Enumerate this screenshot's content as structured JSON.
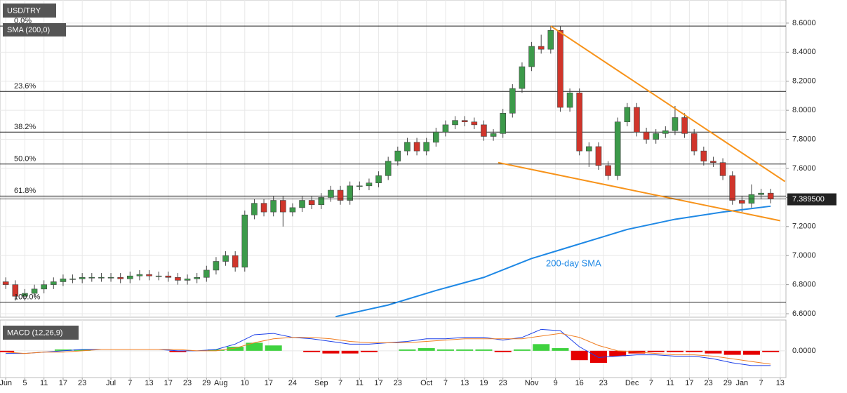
{
  "chart_data": {
    "type": "candlestick",
    "title": "USD/TRY",
    "overlay_label": "SMA (200,0)",
    "xlim": [
      -1.2,
      163.2
    ],
    "ylim": [
      6.576,
      8.759
    ],
    "yticks": [
      {
        "value": 6.6,
        "label": "6.6000"
      },
      {
        "value": 6.8,
        "label": "6.8000"
      },
      {
        "value": 7.0,
        "label": "7.0000"
      },
      {
        "value": 7.2,
        "label": "7.2000"
      },
      {
        "value": 7.4,
        "label": "7.4000"
      },
      {
        "value": 7.6,
        "label": "7.6000"
      },
      {
        "value": 7.8,
        "label": "7.8000"
      },
      {
        "value": 8.0,
        "label": "8.0000"
      },
      {
        "value": 8.2,
        "label": "8.2000"
      },
      {
        "value": 8.4,
        "label": "8.4000"
      },
      {
        "value": 8.6,
        "label": "8.6000"
      }
    ],
    "xticks": [
      {
        "value": 0,
        "label": "Jun"
      },
      {
        "value": 4,
        "label": "5"
      },
      {
        "value": 8,
        "label": "11"
      },
      {
        "value": 12,
        "label": "17"
      },
      {
        "value": 16,
        "label": "23"
      },
      {
        "value": 22,
        "label": "Jul"
      },
      {
        "value": 26,
        "label": "7"
      },
      {
        "value": 30,
        "label": "13"
      },
      {
        "value": 34,
        "label": "17"
      },
      {
        "value": 38,
        "label": "23"
      },
      {
        "value": 42,
        "label": "29"
      },
      {
        "value": 45,
        "label": "Aug"
      },
      {
        "value": 50,
        "label": "10"
      },
      {
        "value": 55,
        "label": "17"
      },
      {
        "value": 60,
        "label": "24"
      },
      {
        "value": 66,
        "label": "Sep"
      },
      {
        "value": 70,
        "label": "7"
      },
      {
        "value": 74,
        "label": "11"
      },
      {
        "value": 78,
        "label": "17"
      },
      {
        "value": 82,
        "label": "23"
      },
      {
        "value": 88,
        "label": "Oct"
      },
      {
        "value": 92,
        "label": "7"
      },
      {
        "value": 96,
        "label": "13"
      },
      {
        "value": 100,
        "label": "19"
      },
      {
        "value": 104,
        "label": "23"
      },
      {
        "value": 110,
        "label": "Nov"
      },
      {
        "value": 115,
        "label": "9"
      },
      {
        "value": 120,
        "label": "16"
      },
      {
        "value": 125,
        "label": "23"
      },
      {
        "value": 131,
        "label": "Dec"
      },
      {
        "value": 135,
        "label": "7"
      },
      {
        "value": 139,
        "label": "11"
      },
      {
        "value": 143,
        "label": "17"
      },
      {
        "value": 147,
        "label": "23"
      },
      {
        "value": 151,
        "label": "29"
      },
      {
        "value": 154,
        "label": "Jan"
      },
      {
        "value": 158,
        "label": "7"
      },
      {
        "value": 162,
        "label": "13"
      }
    ],
    "grid": true,
    "up_color": "#3c9a4a",
    "down_color": "#d0352b",
    "candles": {
      "x": [
        0,
        2,
        4,
        6,
        8,
        10,
        12,
        14,
        16,
        18,
        20,
        22,
        24,
        26,
        28,
        30,
        32,
        34,
        36,
        38,
        40,
        42,
        44,
        46,
        48,
        50,
        52,
        54,
        56,
        58,
        60,
        62,
        64,
        66,
        68,
        70,
        72,
        74,
        76,
        78,
        80,
        82,
        84,
        86,
        88,
        90,
        92,
        94,
        96,
        98,
        100,
        102,
        104,
        106,
        108,
        110,
        112,
        114,
        116,
        118,
        120,
        122,
        124,
        126,
        128,
        130,
        132,
        134,
        136,
        138,
        140,
        142,
        144,
        146,
        148,
        150,
        152,
        154,
        156,
        158,
        160
      ],
      "open": [
        6.82,
        6.8,
        6.72,
        6.74,
        6.77,
        6.8,
        6.82,
        6.84,
        6.84,
        6.85,
        6.85,
        6.85,
        6.85,
        6.84,
        6.86,
        6.87,
        6.86,
        6.86,
        6.85,
        6.83,
        6.84,
        6.85,
        6.9,
        6.96,
        7.0,
        6.92,
        7.28,
        7.36,
        7.3,
        7.38,
        7.3,
        7.33,
        7.38,
        7.35,
        7.4,
        7.45,
        7.38,
        7.48,
        7.48,
        7.5,
        7.55,
        7.65,
        7.72,
        7.78,
        7.72,
        7.78,
        7.85,
        7.9,
        7.93,
        7.92,
        7.9,
        7.82,
        7.84,
        7.98,
        8.15,
        8.3,
        8.44,
        8.42,
        8.55,
        8.02,
        8.12,
        7.72,
        7.75,
        7.62,
        7.55,
        7.92,
        8.02,
        7.85,
        7.8,
        7.84,
        7.86,
        7.95,
        7.84,
        7.72,
        7.65,
        7.64,
        7.55,
        7.38,
        7.36,
        7.42,
        7.43
      ],
      "high": [
        6.85,
        6.83,
        6.77,
        6.8,
        6.83,
        6.85,
        6.87,
        6.87,
        6.88,
        6.88,
        6.88,
        6.88,
        6.88,
        6.89,
        6.9,
        6.9,
        6.89,
        6.89,
        6.88,
        6.87,
        6.88,
        6.93,
        6.99,
        7.03,
        7.03,
        7.31,
        7.39,
        7.39,
        7.41,
        7.41,
        7.36,
        7.41,
        7.41,
        7.43,
        7.48,
        7.48,
        7.51,
        7.51,
        7.53,
        7.58,
        7.68,
        7.75,
        7.81,
        7.81,
        7.81,
        7.88,
        7.93,
        7.96,
        7.96,
        7.95,
        7.93,
        7.87,
        8.01,
        8.18,
        8.33,
        8.47,
        8.52,
        8.58,
        8.58,
        8.15,
        8.15,
        7.78,
        7.78,
        7.65,
        7.95,
        8.05,
        8.05,
        7.88,
        7.87,
        7.89,
        8.03,
        7.98,
        7.87,
        7.75,
        7.68,
        7.67,
        7.58,
        7.41,
        7.49,
        7.46,
        7.46
      ],
      "low": [
        6.77,
        6.69,
        6.69,
        6.71,
        6.74,
        6.77,
        6.79,
        6.81,
        6.81,
        6.82,
        6.82,
        6.82,
        6.81,
        6.81,
        6.83,
        6.83,
        6.83,
        6.82,
        6.8,
        6.8,
        6.81,
        6.82,
        6.87,
        6.93,
        6.89,
        6.89,
        7.25,
        7.27,
        7.27,
        7.2,
        7.27,
        7.3,
        7.32,
        7.32,
        7.37,
        7.35,
        7.35,
        7.45,
        7.45,
        7.47,
        7.52,
        7.62,
        7.69,
        7.69,
        7.69,
        7.75,
        7.82,
        7.87,
        7.89,
        7.87,
        7.79,
        7.79,
        7.81,
        7.95,
        8.12,
        8.27,
        8.39,
        8.39,
        7.99,
        7.99,
        7.69,
        7.61,
        7.59,
        7.52,
        7.52,
        7.89,
        7.82,
        7.77,
        7.77,
        7.81,
        7.83,
        7.81,
        7.69,
        7.62,
        7.61,
        7.52,
        7.35,
        7.3,
        7.33,
        7.39,
        7.36
      ],
      "close": [
        6.8,
        6.72,
        6.74,
        6.77,
        6.8,
        6.82,
        6.84,
        6.84,
        6.85,
        6.85,
        6.85,
        6.85,
        6.84,
        6.86,
        6.87,
        6.86,
        6.86,
        6.85,
        6.83,
        6.84,
        6.85,
        6.9,
        6.96,
        7.0,
        6.92,
        7.28,
        7.36,
        7.3,
        7.38,
        7.3,
        7.33,
        7.38,
        7.35,
        7.4,
        7.45,
        7.38,
        7.48,
        7.48,
        7.5,
        7.55,
        7.65,
        7.72,
        7.78,
        7.72,
        7.78,
        7.85,
        7.9,
        7.93,
        7.92,
        7.9,
        7.82,
        7.84,
        7.98,
        8.15,
        8.3,
        8.44,
        8.42,
        8.55,
        8.02,
        8.12,
        7.72,
        7.75,
        7.62,
        7.55,
        7.92,
        8.02,
        7.85,
        7.8,
        7.84,
        7.86,
        7.95,
        7.84,
        7.72,
        7.65,
        7.64,
        7.55,
        7.38,
        7.36,
        7.42,
        7.43,
        7.39
      ]
    },
    "sma": {
      "name": "200-day SMA",
      "color": "#1e88e5",
      "x": [
        69,
        80,
        90,
        100,
        110,
        115,
        120,
        125,
        130,
        140,
        150,
        155,
        160
      ],
      "values": [
        6.58,
        6.66,
        6.76,
        6.85,
        6.98,
        7.03,
        7.08,
        7.13,
        7.18,
        7.25,
        7.3,
        7.32,
        7.34
      ]
    },
    "trendlines": [
      {
        "color": "#f7931a",
        "x": [
          114,
          163
        ],
        "values": [
          8.58,
          7.51
        ]
      },
      {
        "color": "#f7931a",
        "x": [
          103,
          162
        ],
        "values": [
          7.64,
          7.24
        ]
      }
    ],
    "fib_levels": [
      {
        "label": "0.0%",
        "value": 8.58
      },
      {
        "label": "23.6%",
        "value": 8.13
      },
      {
        "label": "38.2%",
        "value": 7.85
      },
      {
        "label": "50.0%",
        "value": 7.63
      },
      {
        "label": "61.8%",
        "value": 7.41
      },
      {
        "label": "100.0%",
        "value": 6.68
      }
    ],
    "last_price": {
      "value": 7.3895,
      "label": "7.389500"
    },
    "macd": {
      "label": "MACD (12,26,9)",
      "ylim": [
        -0.2,
        0.23
      ],
      "yticks": [
        {
          "value": 0,
          "label": "0.0000"
        }
      ],
      "x": [
        0,
        4,
        8,
        12,
        16,
        20,
        24,
        28,
        32,
        36,
        40,
        44,
        48,
        52,
        56,
        60,
        64,
        68,
        72,
        76,
        80,
        84,
        88,
        92,
        96,
        100,
        104,
        108,
        112,
        116,
        120,
        124,
        128,
        132,
        136,
        140,
        144,
        148,
        152,
        156,
        160
      ],
      "macd_color": "#1a3ee8",
      "signal_color": "#f07e22",
      "positive_color": "#3fd23f",
      "negative_color": "#e50000",
      "macd": [
        -0.02,
        -0.02,
        -0.01,
        0,
        0.01,
        0.01,
        0.01,
        0.01,
        0.01,
        0,
        0,
        0.01,
        0.05,
        0.12,
        0.13,
        0.1,
        0.09,
        0.07,
        0.05,
        0.05,
        0.06,
        0.07,
        0.09,
        0.09,
        0.1,
        0.1,
        0.08,
        0.1,
        0.16,
        0.15,
        0.03,
        -0.05,
        -0.04,
        -0.03,
        -0.03,
        -0.04,
        -0.04,
        -0.06,
        -0.09,
        -0.11,
        -0.11
      ],
      "signal": [
        -0.01,
        -0.02,
        -0.01,
        -0.01,
        0,
        0.01,
        0.01,
        0.01,
        0.01,
        0.01,
        0,
        0,
        0.02,
        0.06,
        0.09,
        0.1,
        0.1,
        0.09,
        0.07,
        0.06,
        0.06,
        0.06,
        0.07,
        0.08,
        0.09,
        0.09,
        0.09,
        0.09,
        0.11,
        0.13,
        0.1,
        0.04,
        0,
        -0.01,
        -0.02,
        -0.03,
        -0.03,
        -0.04,
        -0.06,
        -0.08,
        -0.1
      ],
      "histogram": [
        -0.01,
        0,
        0,
        0.01,
        0.01,
        0,
        0,
        0,
        0,
        -0.01,
        0,
        0.01,
        0.03,
        0.06,
        0.04,
        0,
        -0.01,
        -0.02,
        -0.02,
        -0.01,
        0,
        0.01,
        0.02,
        0.01,
        0.01,
        0.01,
        -0.01,
        0.01,
        0.05,
        0.02,
        -0.07,
        -0.09,
        -0.04,
        -0.02,
        -0.01,
        -0.01,
        -0.01,
        -0.02,
        -0.03,
        -0.03,
        -0.01
      ]
    }
  }
}
